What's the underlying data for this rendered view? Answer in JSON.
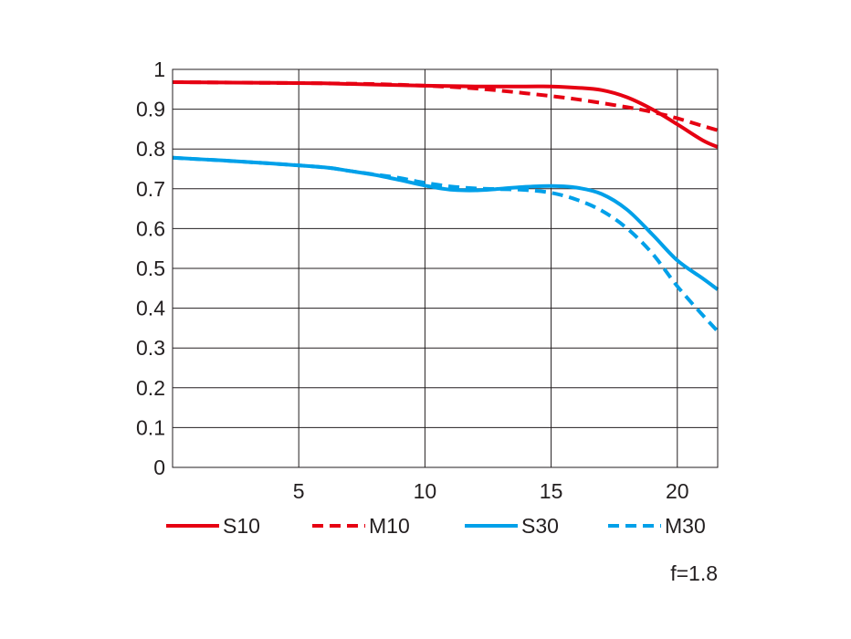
{
  "chart_data": {
    "type": "line",
    "xlim": [
      0,
      21.6
    ],
    "ylim": [
      0,
      1
    ],
    "x_ticks": [
      5,
      10,
      15,
      20
    ],
    "x_tick_labels": [
      "5",
      "10",
      "15",
      "20"
    ],
    "y_ticks": [
      0,
      0.1,
      0.2,
      0.3,
      0.4,
      0.5,
      0.6,
      0.7,
      0.8,
      0.9,
      1
    ],
    "y_tick_labels": [
      "0",
      "0.1",
      "0.2",
      "0.3",
      "0.4",
      "0.5",
      "0.6",
      "0.7",
      "0.8",
      "0.9",
      "1"
    ],
    "grid": true,
    "legend_position": "bottom",
    "annotation": "f=1.8",
    "series": [
      {
        "name": "S10",
        "color": "#e60012",
        "dash": "solid",
        "x": [
          0,
          2,
          4,
          6,
          8,
          10,
          12,
          14,
          15,
          16,
          17,
          18,
          19,
          20,
          21,
          21.6
        ],
        "y": [
          0.968,
          0.967,
          0.966,
          0.965,
          0.962,
          0.959,
          0.957,
          0.957,
          0.957,
          0.954,
          0.948,
          0.93,
          0.9,
          0.862,
          0.822,
          0.805
        ]
      },
      {
        "name": "M10",
        "color": "#e60012",
        "dash": "dashed",
        "x": [
          0,
          2,
          4,
          6,
          8,
          10,
          12,
          14,
          16,
          18,
          19,
          20,
          21,
          21.6
        ],
        "y": [
          0.968,
          0.967,
          0.966,
          0.965,
          0.963,
          0.959,
          0.952,
          0.94,
          0.925,
          0.905,
          0.893,
          0.877,
          0.858,
          0.847
        ]
      },
      {
        "name": "S30",
        "color": "#00a0e9",
        "dash": "solid",
        "x": [
          0,
          2,
          4,
          6,
          7,
          8,
          9,
          10,
          11,
          12,
          13,
          14,
          15,
          16,
          17,
          18,
          19,
          20,
          21,
          21.6
        ],
        "y": [
          0.778,
          0.771,
          0.763,
          0.754,
          0.745,
          0.735,
          0.722,
          0.708,
          0.698,
          0.696,
          0.7,
          0.705,
          0.707,
          0.703,
          0.687,
          0.648,
          0.586,
          0.52,
          0.475,
          0.447
        ]
      },
      {
        "name": "M30",
        "color": "#00a0e9",
        "dash": "dashed",
        "x": [
          0,
          2,
          4,
          6,
          7,
          8,
          9,
          10,
          11,
          12,
          13,
          14,
          15,
          16,
          17,
          18,
          19,
          20,
          21,
          21.6
        ],
        "y": [
          0.778,
          0.771,
          0.763,
          0.754,
          0.745,
          0.736,
          0.727,
          0.715,
          0.706,
          0.701,
          0.699,
          0.697,
          0.69,
          0.673,
          0.645,
          0.601,
          0.538,
          0.455,
          0.383,
          0.342
        ]
      }
    ]
  }
}
